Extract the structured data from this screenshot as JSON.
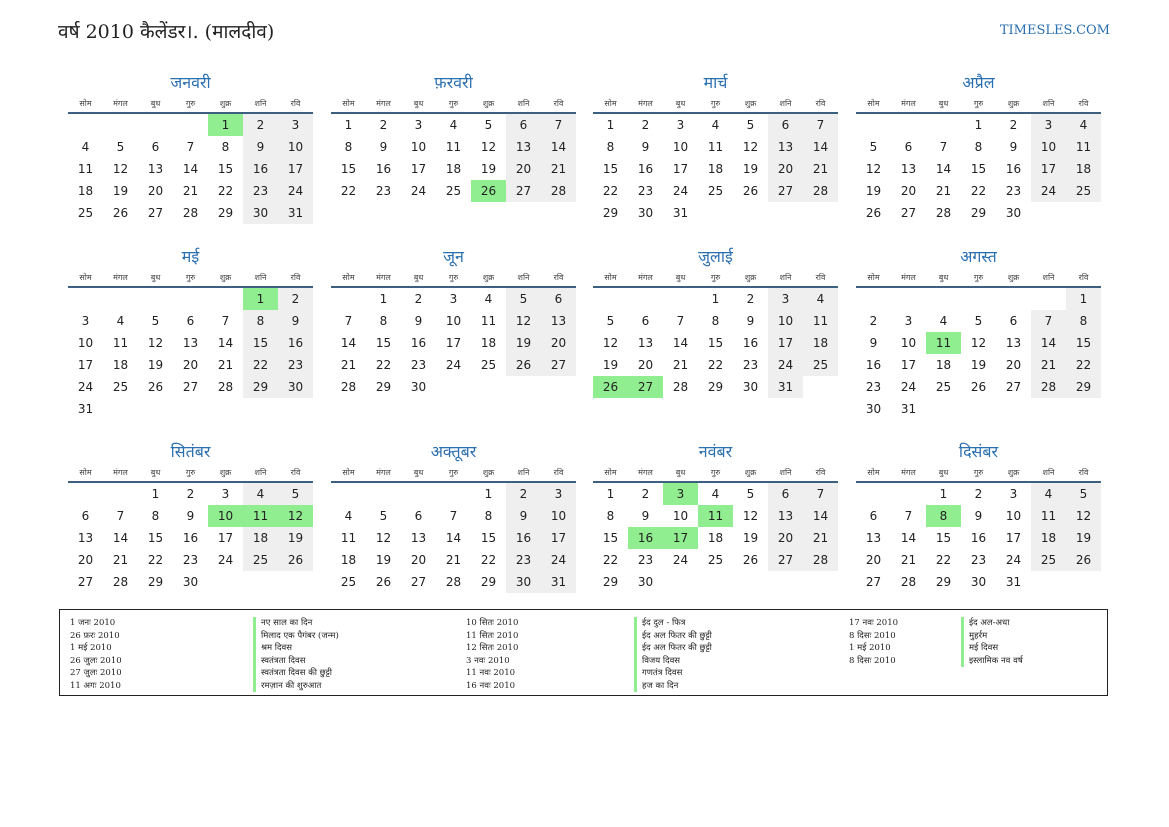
{
  "page_title": "वर्ष 2010 कैलेंडर।. (मालदीव)",
  "site": "TIMESLES.COM",
  "weekdays": [
    "सोम",
    "मंगल",
    "बुध",
    "गुरु",
    "शुक्र",
    "शनि",
    "रवि"
  ],
  "months": [
    {
      "name": "जनवरी",
      "start": 4,
      "days": 31,
      "holidays": [
        1
      ]
    },
    {
      "name": "फ़रवरी",
      "start": 0,
      "days": 28,
      "holidays": [
        26
      ]
    },
    {
      "name": "मार्च",
      "start": 0,
      "days": 31,
      "holidays": []
    },
    {
      "name": "अप्रैल",
      "start": 3,
      "days": 30,
      "holidays": []
    },
    {
      "name": "मई",
      "start": 5,
      "days": 31,
      "holidays": [
        1
      ]
    },
    {
      "name": "जून",
      "start": 1,
      "days": 30,
      "holidays": []
    },
    {
      "name": "जुलाई",
      "start": 3,
      "days": 31,
      "holidays": [
        26,
        27
      ]
    },
    {
      "name": "अगस्त",
      "start": 6,
      "days": 31,
      "holidays": [
        11
      ]
    },
    {
      "name": "सितंबर",
      "start": 2,
      "days": 30,
      "holidays": [
        10,
        11,
        12
      ]
    },
    {
      "name": "अक्तूबर",
      "start": 4,
      "days": 31,
      "holidays": []
    },
    {
      "name": "नवंबर",
      "start": 0,
      "days": 30,
      "holidays": [
        3,
        11,
        16,
        17
      ]
    },
    {
      "name": "दिसंबर",
      "start": 2,
      "days": 31,
      "holidays": [
        8
      ]
    }
  ],
  "legend": [
    {
      "date": "1 जनः 2010",
      "name": "नए साल का दिन"
    },
    {
      "date": "26 फ़रः 2010",
      "name": "मिलाद एक पैगंबर (जन्म)"
    },
    {
      "date": "1 मई 2010",
      "name": "श्रम दिवस"
    },
    {
      "date": "26 जुलः 2010",
      "name": "स्वतंत्रता दिवस"
    },
    {
      "date": "27 जुलः 2010",
      "name": "स्वतंत्रता दिवस की छुट्टी"
    },
    {
      "date": "11 अगः 2010",
      "name": "रमज़ान की शुरुआत"
    },
    {
      "date": "10 सितः 2010",
      "name": "ईद दुल - फित्र"
    },
    {
      "date": "11 सितः 2010",
      "name": "ईद अल फितर की छुट्टी"
    },
    {
      "date": "12 सितः 2010",
      "name": "ईद अल फितर की छुट्टी"
    },
    {
      "date": "3 नवः 2010",
      "name": "विजय दिवस"
    },
    {
      "date": "11 नवः 2010",
      "name": "गणतंत्र दिवस"
    },
    {
      "date": "16 नवः 2010",
      "name": "हज का दिन"
    },
    {
      "date": "17 नवः 2010",
      "name": "ईद अल-अधा"
    },
    {
      "date": "8 दिसः 2010",
      "name": "मुहर्रम"
    },
    {
      "date": "1 मई 2010",
      "name": "मई दिवस"
    },
    {
      "date": "8 दिसः 2010",
      "name": "इस्लामिक नव वर्ष"
    }
  ]
}
